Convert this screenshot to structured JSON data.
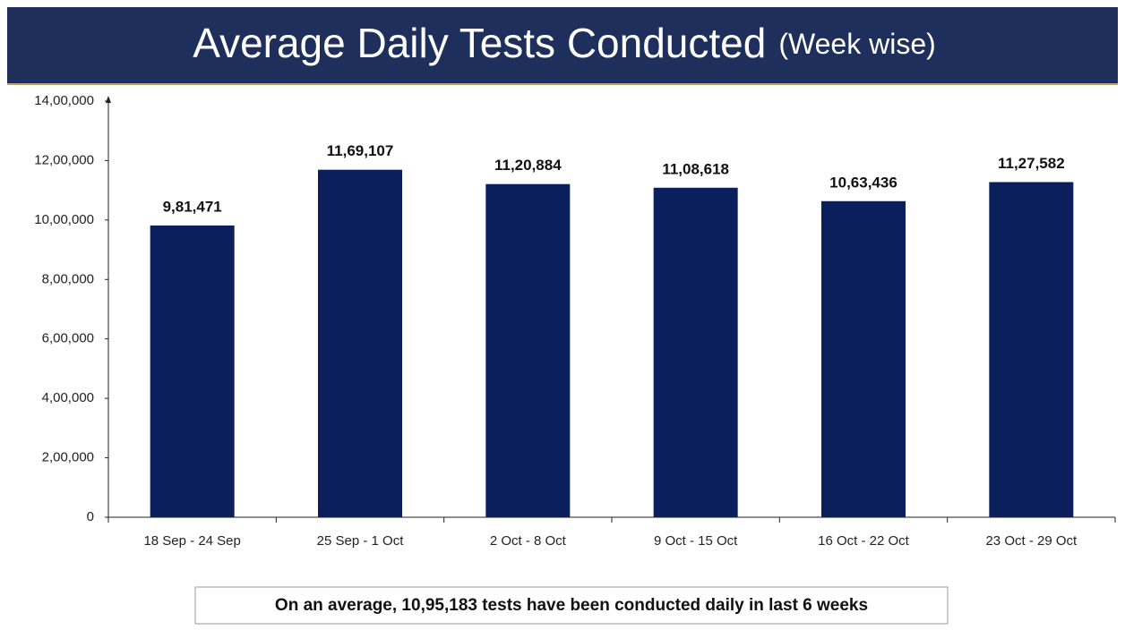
{
  "chart_data": {
    "type": "bar",
    "title": "Average Daily Tests Conducted",
    "subtitle": "(Week wise)",
    "categories": [
      "18 Sep - 24 Sep",
      "25 Sep - 1 Oct",
      "2 Oct - 8 Oct",
      "9 Oct - 15 Oct",
      "16 Oct - 22 Oct",
      "23 Oct - 29 Oct"
    ],
    "values": [
      981471,
      1169107,
      1120884,
      1108618,
      1063436,
      1127582
    ],
    "value_labels": [
      "9,81,471",
      "11,69,107",
      "11,20,884",
      "11,08,618",
      "10,63,436",
      "11,27,582"
    ],
    "color": "#0b1f5c",
    "ylim": [
      0,
      1400000
    ],
    "yticks": [
      0,
      {
        "value": 200000,
        "label": "2,00,000"
      },
      {
        "value": 400000,
        "label": "4,00,000"
      },
      {
        "value": 600000,
        "label": "6,00,000"
      },
      {
        "value": 800000,
        "label": "8,00,000"
      },
      {
        "value": 1000000,
        "label": "10,00,000"
      },
      {
        "value": 1200000,
        "label": "12,00,000"
      },
      {
        "value": 1400000,
        "label": "14,00,000"
      }
    ],
    "annotation": "On an average, 10,95,183 tests have been conducted daily in last 6 weeks"
  }
}
